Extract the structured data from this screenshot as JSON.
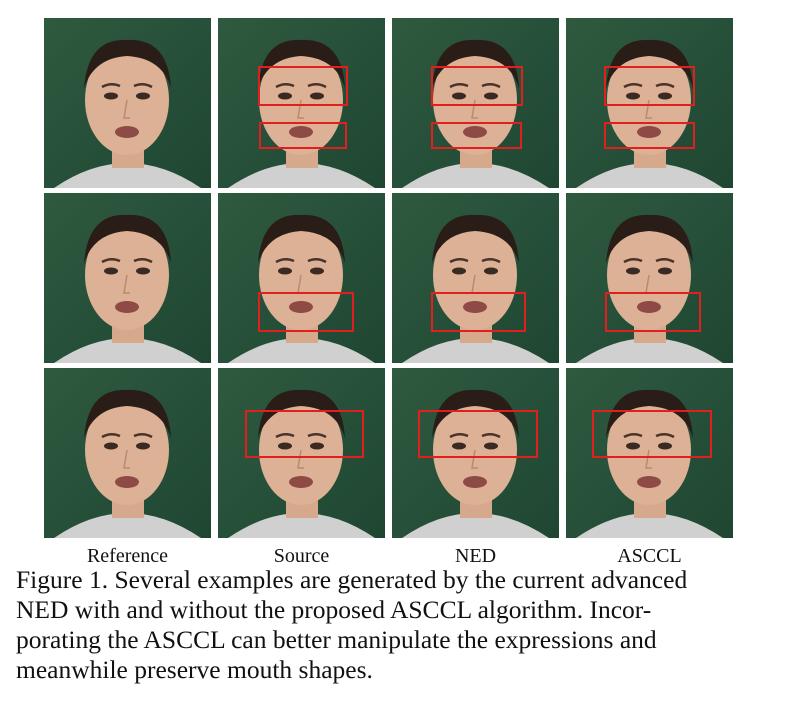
{
  "columns": [
    "Reference",
    "Source",
    "NED",
    "ASCCL"
  ],
  "caption": {
    "label": "Figure 1.",
    "line1": "Several examples are generated by the current advanced",
    "line2": "NED with and without the proposed ASCCL algorithm.  Incor-",
    "line3": "porating the ASCCL can better manipulate the expressions and",
    "line4": "meanwhile preserve mouth shapes."
  },
  "highlight_color": "#e21f1f"
}
